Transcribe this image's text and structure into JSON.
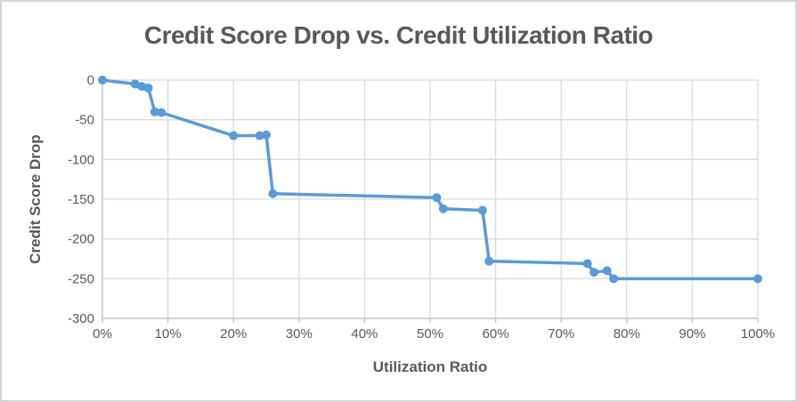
{
  "style": {
    "frame_border_color": "#d4d4d4",
    "background_color": "#ffffff",
    "title_color": "#595959",
    "axis_title_color": "#595959",
    "tick_label_color": "#595959",
    "grid_color": "#d9d9d9",
    "axis_line_color": "#bfbfbf",
    "series_color": "#5b9bd5"
  },
  "chart_data": {
    "type": "line",
    "title": "Credit Score Drop vs. Credit Utilization Ratio",
    "xlabel": "Utilization Ratio",
    "ylabel": "Credit Score Drop",
    "xlim": [
      0,
      100
    ],
    "ylim": [
      -300,
      0
    ],
    "grid": true,
    "legend_position": "none",
    "x_tick_values": [
      0,
      10,
      20,
      30,
      40,
      50,
      60,
      70,
      80,
      90,
      100
    ],
    "x_tick_labels": [
      "0%",
      "10%",
      "20%",
      "30%",
      "40%",
      "50%",
      "60%",
      "70%",
      "80%",
      "90%",
      "100%"
    ],
    "y_tick_values": [
      0,
      -50,
      -100,
      -150,
      -200,
      -250,
      -300
    ],
    "y_tick_labels": [
      "0",
      "-50",
      "-100",
      "-150",
      "-200",
      "-250",
      "-300"
    ],
    "series": [
      {
        "name": "Credit Score Drop",
        "color": "#5b9bd5",
        "marker": "circle",
        "points": [
          {
            "x": 0,
            "y": 0
          },
          {
            "x": 5,
            "y": -5
          },
          {
            "x": 6,
            "y": -8
          },
          {
            "x": 7,
            "y": -10
          },
          {
            "x": 8,
            "y": -40
          },
          {
            "x": 9,
            "y": -41
          },
          {
            "x": 20,
            "y": -70
          },
          {
            "x": 24,
            "y": -70
          },
          {
            "x": 25,
            "y": -69
          },
          {
            "x": 26,
            "y": -143
          },
          {
            "x": 51,
            "y": -148
          },
          {
            "x": 52,
            "y": -162
          },
          {
            "x": 58,
            "y": -164
          },
          {
            "x": 59,
            "y": -228
          },
          {
            "x": 74,
            "y": -231
          },
          {
            "x": 75,
            "y": -242
          },
          {
            "x": 77,
            "y": -240
          },
          {
            "x": 78,
            "y": -250
          },
          {
            "x": 100,
            "y": -250
          }
        ]
      }
    ]
  }
}
